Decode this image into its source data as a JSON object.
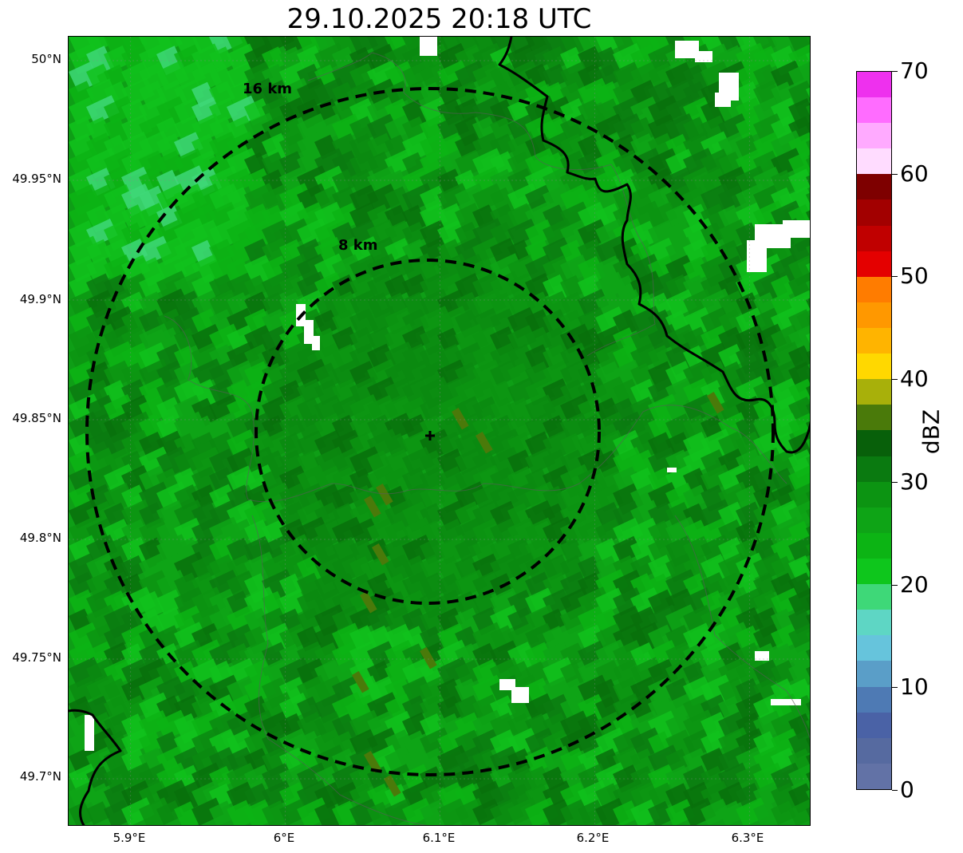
{
  "title": "29.10.2025 20:18 UTC",
  "map": {
    "lon_range": [
      5.86,
      6.34
    ],
    "lat_range": [
      49.68,
      50.01
    ],
    "center_marker": {
      "lon": 6.095,
      "lat": 49.843
    },
    "range_rings": [
      {
        "label": "8 km",
        "radius_km": 8
      },
      {
        "label": "16 km",
        "radius_km": 16
      }
    ],
    "gridlines": true,
    "base_color": "#0e9e16",
    "ring_color": "#000000",
    "border_color": "#000000",
    "no_data_color": "#ffffff"
  },
  "axes": {
    "x_ticks": [
      {
        "value": 5.9,
        "label": "5.9°E"
      },
      {
        "value": 6.0,
        "label": "6°E"
      },
      {
        "value": 6.1,
        "label": "6.1°E"
      },
      {
        "value": 6.2,
        "label": "6.2°E"
      },
      {
        "value": 6.3,
        "label": "6.3°E"
      }
    ],
    "y_ticks": [
      {
        "value": 50.0,
        "label": "50°N"
      },
      {
        "value": 49.95,
        "label": "49.95°N"
      },
      {
        "value": 49.9,
        "label": "49.9°N"
      },
      {
        "value": 49.85,
        "label": "49.85°N"
      },
      {
        "value": 49.8,
        "label": "49.8°N"
      },
      {
        "value": 49.75,
        "label": "49.75°N"
      },
      {
        "value": 49.7,
        "label": "49.7°N"
      }
    ]
  },
  "colorbar": {
    "label": "dBZ",
    "min": 0,
    "max": 70,
    "ticks": [
      {
        "value": 0,
        "label": "0"
      },
      {
        "value": 10,
        "label": "10"
      },
      {
        "value": 20,
        "label": "20"
      },
      {
        "value": 30,
        "label": "30"
      },
      {
        "value": 40,
        "label": "40"
      },
      {
        "value": 50,
        "label": "50"
      },
      {
        "value": 60,
        "label": "60"
      },
      {
        "value": 70,
        "label": "70"
      }
    ],
    "bins": [
      "#6272a6",
      "#566aa0",
      "#4a62a6",
      "#4e7ab4",
      "#5a9ec8",
      "#66c4dc",
      "#5ed6c4",
      "#3ed878",
      "#0ec61c",
      "#0cb414",
      "#0ea416",
      "#0c9412",
      "#0a7a10",
      "#08600a",
      "#4a7a0a",
      "#a8b00a",
      "#ffd800",
      "#ffb400",
      "#ff9800",
      "#ff7c00",
      "#e40000",
      "#c00000",
      "#a20000",
      "#7e0000",
      "#ffdcff",
      "#ffaaff",
      "#ff6cff",
      "#ee30ee"
    ]
  }
}
